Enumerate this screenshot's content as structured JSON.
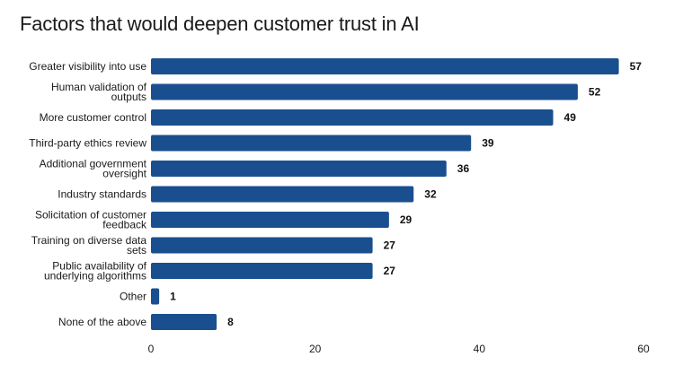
{
  "chart_data": {
    "type": "bar",
    "orientation": "horizontal",
    "title": "Factors that would deepen customer trust in AI",
    "categories": [
      [
        "Greater visibility into use"
      ],
      [
        "Human validation of",
        "outputs"
      ],
      [
        "More customer control"
      ],
      [
        "Third-party ethics review"
      ],
      [
        "Additional government",
        "oversight"
      ],
      [
        "Industry standards"
      ],
      [
        "Solicitation of customer",
        "feedback"
      ],
      [
        "Training on diverse data",
        "sets"
      ],
      [
        "Public availability of",
        "underlying algorithms"
      ],
      [
        "Other"
      ],
      [
        "None of the above"
      ]
    ],
    "values": [
      57,
      52,
      49,
      39,
      36,
      32,
      29,
      27,
      27,
      1,
      8
    ],
    "xlim": [
      0,
      60
    ],
    "xticks": [
      0,
      20,
      40,
      60
    ],
    "xlabel": "",
    "ylabel": "",
    "grid": false,
    "legend": "none",
    "bar_color": "#1a4f8f"
  }
}
